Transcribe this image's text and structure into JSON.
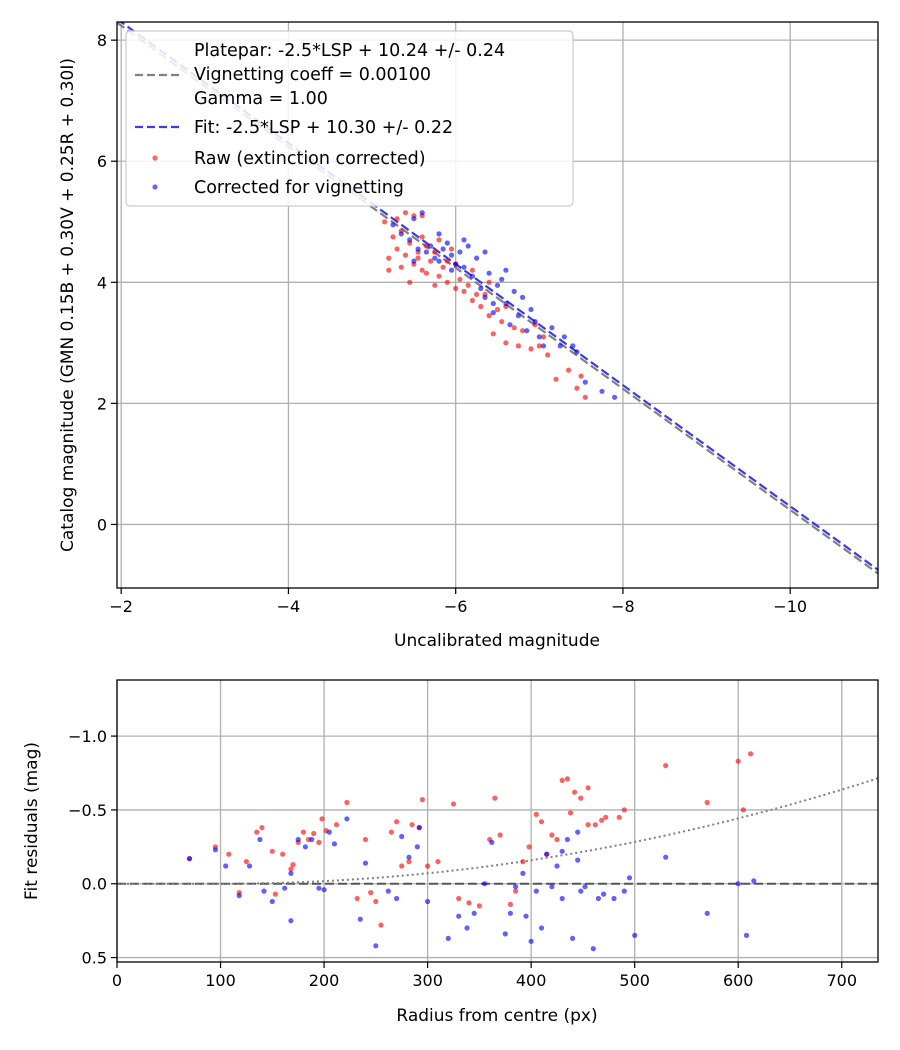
{
  "chart_data": [
    {
      "type": "scatter",
      "xlabel": "Uncalibrated magnitude",
      "ylabel": "Catalog magnitude (GMN 0.15B + 0.30V + 0.25R + 0.30I)",
      "xlim": [
        -1.95,
        -11.05
      ],
      "ylim": [
        8.3,
        -1.05
      ],
      "xticks": [
        -2,
        -4,
        -6,
        -8,
        -10
      ],
      "yticks": [
        0,
        2,
        4,
        6,
        8
      ],
      "xtick_labels": [
        "−2",
        "−4",
        "−6",
        "−8",
        "−10"
      ],
      "ytick_labels": [
        "0",
        "2",
        "4",
        "6",
        "8"
      ],
      "grid": true,
      "legend_position": "top-left",
      "legend": {
        "platepar_line1": "Platepar: -2.5*LSP + 10.24 +/- 0.24",
        "platepar_line2": "Vignetting coeff = 0.00100",
        "platepar_line3": "Gamma = 1.00",
        "fit": "Fit: -2.5*LSP + 10.30 +/- 0.22",
        "raw": "Raw (extinction corrected)",
        "corrected": "Corrected for vignetting"
      },
      "lines": [
        {
          "name": "Platepar",
          "slope": 1,
          "intercept": 10.24,
          "color": "#808080",
          "style": "dashed"
        },
        {
          "name": "Fit",
          "slope": 1,
          "intercept": 10.3,
          "color": "#3a3af0",
          "style": "dashed"
        }
      ],
      "series": [
        {
          "name": "Raw (extinction corrected)",
          "color": "#ff0000",
          "points": [
            [
              -7.55,
              2.1
            ],
            [
              -7.45,
              2.25
            ],
            [
              -7.2,
              2.4
            ],
            [
              -7.5,
              2.45
            ],
            [
              -7.35,
              2.55
            ],
            [
              -7.1,
              2.8
            ],
            [
              -6.9,
              2.9
            ],
            [
              -7.0,
              2.95
            ],
            [
              -6.75,
              2.95
            ],
            [
              -6.6,
              3.0
            ],
            [
              -6.45,
              3.15
            ],
            [
              -6.7,
              3.25
            ],
            [
              -6.55,
              3.35
            ],
            [
              -6.4,
              3.45
            ],
            [
              -6.5,
              3.55
            ],
            [
              -6.3,
              3.6
            ],
            [
              -6.2,
              3.7
            ],
            [
              -6.35,
              3.8
            ],
            [
              -6.1,
              3.85
            ],
            [
              -6.0,
              3.9
            ],
            [
              -6.15,
              3.95
            ],
            [
              -5.9,
              4.0
            ],
            [
              -5.75,
              3.95
            ],
            [
              -5.8,
              4.1
            ],
            [
              -5.45,
              4.0
            ],
            [
              -5.6,
              4.2
            ],
            [
              -5.5,
              4.3
            ],
            [
              -5.35,
              4.25
            ],
            [
              -5.7,
              4.35
            ],
            [
              -5.2,
              4.4
            ],
            [
              -5.4,
              4.45
            ],
            [
              -5.55,
              4.5
            ],
            [
              -5.3,
              4.55
            ],
            [
              -5.65,
              4.6
            ],
            [
              -5.45,
              4.65
            ],
            [
              -5.6,
              4.75
            ],
            [
              -5.25,
              4.75
            ],
            [
              -5.35,
              4.85
            ],
            [
              -5.15,
              5.0
            ],
            [
              -5.3,
              5.05
            ],
            [
              -5.5,
              5.1
            ],
            [
              -5.4,
              5.15
            ],
            [
              -5.6,
              5.1
            ],
            [
              -5.8,
              4.7
            ],
            [
              -6.0,
              4.3
            ],
            [
              -6.2,
              4.2
            ],
            [
              -6.4,
              4.0
            ],
            [
              -6.6,
              3.6
            ],
            [
              -5.95,
              4.55
            ],
            [
              -5.75,
              4.5
            ],
            [
              -5.55,
              4.4
            ],
            [
              -5.85,
              4.25
            ],
            [
              -6.25,
              3.8
            ],
            [
              -6.8,
              3.2
            ],
            [
              -6.95,
              3.3
            ],
            [
              -7.05,
              3.1
            ],
            [
              -5.2,
              4.2
            ],
            [
              -5.65,
              4.15
            ],
            [
              -6.05,
              4.05
            ],
            [
              -5.9,
              4.35
            ]
          ]
        },
        {
          "name": "Corrected for vignetting",
          "color": "#0000ff",
          "points": [
            [
              -7.9,
              2.1
            ],
            [
              -7.75,
              2.2
            ],
            [
              -7.55,
              2.35
            ],
            [
              -7.45,
              2.85
            ],
            [
              -7.25,
              2.95
            ],
            [
              -7.3,
              3.1
            ],
            [
              -7.05,
              2.95
            ],
            [
              -7.0,
              3.1
            ],
            [
              -6.85,
              3.2
            ],
            [
              -6.95,
              3.35
            ],
            [
              -6.75,
              3.45
            ],
            [
              -6.9,
              3.55
            ],
            [
              -6.6,
              3.65
            ],
            [
              -6.7,
              3.85
            ],
            [
              -6.45,
              3.65
            ],
            [
              -6.35,
              3.75
            ],
            [
              -6.3,
              3.9
            ],
            [
              -6.55,
              4.05
            ],
            [
              -6.4,
              4.15
            ],
            [
              -6.1,
              4.25
            ],
            [
              -6.0,
              4.3
            ],
            [
              -6.25,
              4.4
            ],
            [
              -5.95,
              4.45
            ],
            [
              -5.85,
              4.55
            ],
            [
              -6.15,
              4.6
            ],
            [
              -5.75,
              4.4
            ],
            [
              -5.65,
              4.5
            ],
            [
              -5.55,
              4.55
            ],
            [
              -5.45,
              4.7
            ],
            [
              -5.35,
              4.8
            ],
            [
              -5.25,
              4.95
            ],
            [
              -5.5,
              5.05
            ],
            [
              -5.6,
              5.15
            ],
            [
              -5.7,
              4.6
            ],
            [
              -5.9,
              4.65
            ],
            [
              -6.05,
              4.5
            ],
            [
              -5.8,
              4.35
            ],
            [
              -6.2,
              4.1
            ],
            [
              -6.5,
              3.95
            ],
            [
              -6.8,
              3.75
            ],
            [
              -7.15,
              3.25
            ],
            [
              -6.65,
              3.3
            ],
            [
              -5.95,
              4.2
            ],
            [
              -5.5,
              4.35
            ],
            [
              -6.35,
              4.5
            ],
            [
              -5.8,
              4.8
            ],
            [
              -6.1,
              4.7
            ],
            [
              -6.6,
              4.2
            ],
            [
              -6.45,
              3.5
            ],
            [
              -7.4,
              2.95
            ]
          ]
        }
      ]
    },
    {
      "type": "scatter",
      "xlabel": "Radius from centre (px)",
      "ylabel": "Fit residuals (mag)",
      "xlim": [
        0,
        735
      ],
      "ylim": [
        -1.38,
        0.53
      ],
      "xticks": [
        0,
        100,
        200,
        300,
        400,
        500,
        600,
        700
      ],
      "yticks": [
        0.5,
        0.0,
        -0.5,
        -1.0
      ],
      "xtick_labels": [
        "0",
        "100",
        "200",
        "300",
        "400",
        "500",
        "600",
        "700"
      ],
      "ytick_labels": [
        "0.5",
        "0.0",
        "−0.5",
        "−1.0"
      ],
      "grid": true,
      "reference_line": {
        "y": 0,
        "color": "#555555",
        "style": "dashed"
      },
      "vignetting_curve": {
        "coeff": 0.001,
        "color": "#808080",
        "style": "dotted"
      },
      "series": [
        {
          "name": "Raw",
          "color": "#ff0000",
          "points": [
            [
              70,
              -0.17
            ],
            [
              95,
              -0.25
            ],
            [
              108,
              -0.2
            ],
            [
              118,
              0.06
            ],
            [
              125,
              -0.15
            ],
            [
              135,
              -0.35
            ],
            [
              140,
              -0.38
            ],
            [
              150,
              -0.22
            ],
            [
              153,
              0.07
            ],
            [
              160,
              -0.2
            ],
            [
              168,
              -0.1
            ],
            [
              170,
              -0.13
            ],
            [
              175,
              -0.28
            ],
            [
              180,
              -0.35
            ],
            [
              185,
              -0.3
            ],
            [
              190,
              -0.34
            ],
            [
              195,
              -0.28
            ],
            [
              198,
              -0.44
            ],
            [
              202,
              -0.36
            ],
            [
              212,
              -0.4
            ],
            [
              222,
              -0.55
            ],
            [
              232,
              0.1
            ],
            [
              240,
              -0.3
            ],
            [
              245,
              0.06
            ],
            [
              250,
              0.12
            ],
            [
              255,
              0.28
            ],
            [
              265,
              -0.35
            ],
            [
              270,
              -0.42
            ],
            [
              275,
              -0.12
            ],
            [
              282,
              -0.15
            ],
            [
              285,
              -0.4
            ],
            [
              292,
              -0.38
            ],
            [
              295,
              -0.57
            ],
            [
              300,
              -0.12
            ],
            [
              310,
              -0.15
            ],
            [
              325,
              -0.54
            ],
            [
              330,
              0.1
            ],
            [
              340,
              0.13
            ],
            [
              350,
              0.15
            ],
            [
              360,
              -0.3
            ],
            [
              365,
              -0.58
            ],
            [
              370,
              -0.33
            ],
            [
              380,
              0.14
            ],
            [
              385,
              0.05
            ],
            [
              392,
              -0.15
            ],
            [
              398,
              -0.25
            ],
            [
              405,
              -0.47
            ],
            [
              410,
              -0.42
            ],
            [
              415,
              -0.2
            ],
            [
              425,
              -0.3
            ],
            [
              430,
              -0.7
            ],
            [
              435,
              -0.71
            ],
            [
              438,
              -0.48
            ],
            [
              442,
              -0.62
            ],
            [
              448,
              -0.58
            ],
            [
              455,
              -0.65
            ],
            [
              462,
              -0.4
            ],
            [
              468,
              -0.43
            ],
            [
              472,
              -0.45
            ],
            [
              485,
              -0.45
            ],
            [
              490,
              -0.5
            ],
            [
              530,
              -0.8
            ],
            [
              570,
              -0.55
            ],
            [
              600,
              -0.83
            ],
            [
              605,
              -0.5
            ],
            [
              612,
              -0.88
            ],
            [
              455,
              -0.4
            ],
            [
              420,
              -0.33
            ]
          ]
        },
        {
          "name": "Corrected",
          "color": "#0000ff",
          "points": [
            [
              70,
              -0.17
            ],
            [
              95,
              -0.23
            ],
            [
              105,
              -0.12
            ],
            [
              118,
              0.08
            ],
            [
              128,
              -0.12
            ],
            [
              138,
              -0.3
            ],
            [
              142,
              0.05
            ],
            [
              150,
              0.12
            ],
            [
              162,
              0.03
            ],
            [
              168,
              0.25
            ],
            [
              168,
              -0.07
            ],
            [
              175,
              -0.3
            ],
            [
              182,
              -0.25
            ],
            [
              188,
              -0.3
            ],
            [
              195,
              0.03
            ],
            [
              200,
              0.04
            ],
            [
              205,
              -0.35
            ],
            [
              210,
              -0.27
            ],
            [
              222,
              -0.44
            ],
            [
              235,
              0.24
            ],
            [
              240,
              -0.14
            ],
            [
              250,
              0.42
            ],
            [
              262,
              0.05
            ],
            [
              270,
              0.1
            ],
            [
              275,
              -0.32
            ],
            [
              282,
              -0.18
            ],
            [
              290,
              -0.25
            ],
            [
              292,
              -0.38
            ],
            [
              300,
              0.12
            ],
            [
              320,
              0.37
            ],
            [
              330,
              0.22
            ],
            [
              338,
              0.3
            ],
            [
              345,
              0.2
            ],
            [
              355,
              0.0
            ],
            [
              362,
              -0.28
            ],
            [
              375,
              0.34
            ],
            [
              380,
              0.2
            ],
            [
              385,
              0.02
            ],
            [
              392,
              -0.07
            ],
            [
              395,
              0.22
            ],
            [
              400,
              0.39
            ],
            [
              405,
              0.05
            ],
            [
              410,
              0.3
            ],
            [
              415,
              -0.2
            ],
            [
              420,
              0.02
            ],
            [
              425,
              -0.12
            ],
            [
              430,
              0.1
            ],
            [
              435,
              -0.3
            ],
            [
              440,
              0.37
            ],
            [
              445,
              -0.16
            ],
            [
              448,
              0.05
            ],
            [
              452,
              0.02
            ],
            [
              460,
              0.44
            ],
            [
              465,
              0.1
            ],
            [
              470,
              0.07
            ],
            [
              480,
              0.1
            ],
            [
              490,
              0.05
            ],
            [
              495,
              -0.04
            ],
            [
              500,
              0.35
            ],
            [
              530,
              -0.18
            ],
            [
              570,
              0.2
            ],
            [
              600,
              0.0
            ],
            [
              608,
              0.35
            ],
            [
              615,
              -0.02
            ],
            [
              430,
              -0.22
            ],
            [
              445,
              -0.35
            ]
          ]
        }
      ]
    }
  ]
}
